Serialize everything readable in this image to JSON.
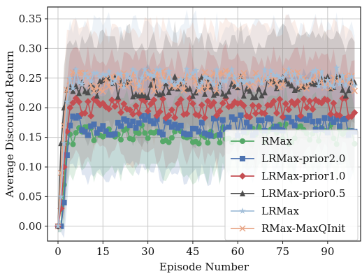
{
  "chart_data": {
    "type": "line",
    "title": "",
    "xlabel": "Episode Number",
    "ylabel": "Average Discounted Return",
    "xlim": [
      -3.5,
      101
    ],
    "ylim": [
      -0.025,
      0.37
    ],
    "xticks": [
      0,
      15,
      30,
      45,
      60,
      75,
      90
    ],
    "yticks": [
      0.0,
      0.05,
      0.1,
      0.15,
      0.2,
      0.25,
      0.3,
      0.35
    ],
    "ytick_labels": [
      "0.00",
      "0.05",
      "0.10",
      "0.15",
      "0.20",
      "0.25",
      "0.30",
      "0.35"
    ],
    "grid": true,
    "legend_position": "lower-right",
    "series": [
      {
        "name": "LRMax",
        "color": "#a3bfd9",
        "marker": "star",
        "plateau": 0.25,
        "band": 0.085,
        "rise": [
          0.0,
          0.05,
          0.14,
          0.21,
          0.25
        ]
      },
      {
        "name": "RMax-MaxQInit",
        "color": "#e8a788",
        "marker": "x",
        "plateau": 0.245,
        "band": 0.085,
        "rise": [
          0.0,
          0.09,
          0.17,
          0.23,
          0.245
        ]
      },
      {
        "name": "LRMax-prior0.5",
        "color": "#4d4d4d",
        "marker": "triangle",
        "plateau": 0.235,
        "band": 0.08,
        "rise": [
          0.0,
          0.14,
          0.2,
          0.23,
          0.235
        ]
      },
      {
        "name": "LRMax-prior1.0",
        "color": "#c44e52",
        "marker": "diamond",
        "plateau": 0.2,
        "band": 0.08,
        "rise": [
          0.0,
          0.03,
          0.1,
          0.16,
          0.2
        ]
      },
      {
        "name": "LRMax-prior2.0",
        "color": "#4c72b0",
        "marker": "square",
        "plateau": 0.17,
        "band": 0.075,
        "rise": [
          0.0,
          0.0,
          0.04,
          0.12,
          0.17
        ]
      },
      {
        "name": "RMax",
        "color": "#55a868",
        "marker": "circle",
        "plateau": 0.155,
        "band": 0.06,
        "rise": [
          0.0,
          0.0,
          0.07,
          0.14,
          0.155
        ]
      }
    ],
    "legend_order": [
      "RMax",
      "LRMax-prior2.0",
      "LRMax-prior1.0",
      "LRMax-prior0.5",
      "LRMax",
      "RMax-MaxQInit"
    ]
  }
}
